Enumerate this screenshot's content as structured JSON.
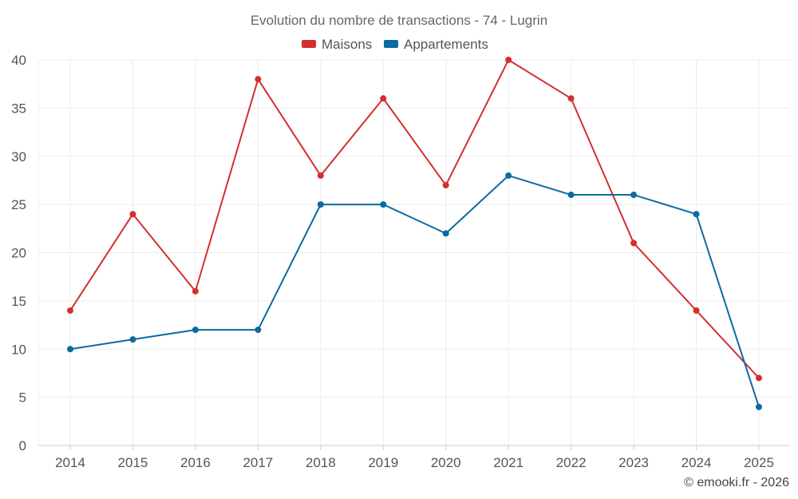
{
  "chart_data": {
    "type": "line",
    "title": "Evolution du nombre de transactions - 74 - Lugrin",
    "x": [
      "2014",
      "2015",
      "2016",
      "2017",
      "2018",
      "2019",
      "2020",
      "2021",
      "2022",
      "2023",
      "2024",
      "2025"
    ],
    "series": [
      {
        "name": "Maisons",
        "color": "#d32f2f",
        "values": [
          14,
          24,
          16,
          38,
          28,
          36,
          27,
          40,
          36,
          21,
          14,
          7
        ]
      },
      {
        "name": "Appartements",
        "color": "#0a6aa1",
        "values": [
          10,
          11,
          12,
          12,
          25,
          25,
          22,
          28,
          26,
          26,
          24,
          4
        ]
      }
    ],
    "ylim": [
      0,
      40
    ],
    "yticks": [
      0,
      5,
      10,
      15,
      20,
      25,
      30,
      35,
      40
    ],
    "grid": true,
    "legend": "top-center",
    "xlabel": "",
    "ylabel": ""
  },
  "credit": "© emooki.fr - 2026"
}
